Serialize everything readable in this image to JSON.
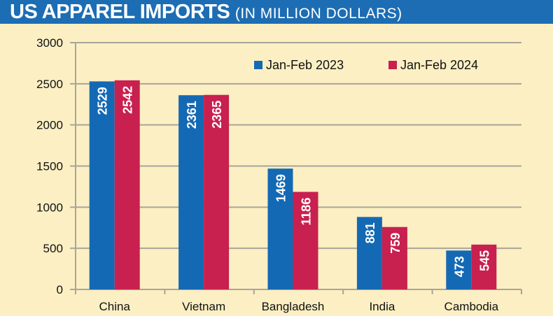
{
  "chart_data": {
    "type": "bar",
    "title": "US APPAREL IMPORTS",
    "subtitle": "(IN MILLION DOLLARS)",
    "categories": [
      "China",
      "Vietnam",
      "Bangladesh",
      "India",
      "Cambodia"
    ],
    "series": [
      {
        "name": "Jan-Feb 2023",
        "color": "#1469b4",
        "values": [
          2529,
          2361,
          1469,
          881,
          473
        ]
      },
      {
        "name": "Jan-Feb 2024",
        "color": "#c8204f",
        "values": [
          2542,
          2365,
          1186,
          759,
          545
        ]
      }
    ],
    "ylim": [
      0,
      3000
    ],
    "yticks": [
      0,
      500,
      1000,
      1500,
      2000,
      2500,
      3000
    ],
    "grid": true,
    "legend": "top-right",
    "xlabel": "",
    "ylabel": "",
    "colors": {
      "title_bar": "#1c6db3",
      "background": "#fcefc3",
      "grid": "#a8a59a"
    }
  }
}
